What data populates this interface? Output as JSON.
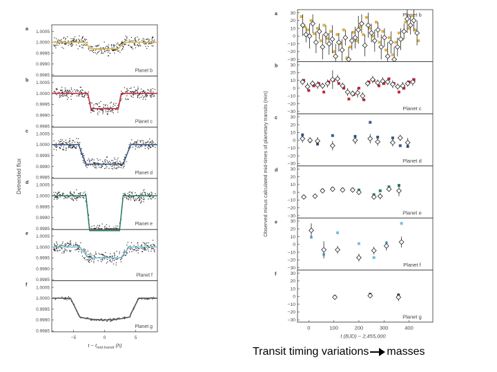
{
  "caption": {
    "text_before": "Transit timing variations",
    "text_after": "masses"
  },
  "colors": {
    "b": "#d9b24a",
    "c": "#c0283c",
    "d": "#3c5a88",
    "e": "#2f7f6f",
    "f": "#78bfd8",
    "g": "#555555"
  },
  "chart_data": [
    {
      "type": "scatter",
      "description_key": "lightcurves",
      "ylabel": "Detrended flux",
      "xlabel_prefix": "t − t",
      "xlabel_sub": "mid transit",
      "xlabel_unit": " (h)",
      "x_ticks": [
        "−5",
        "0",
        "5"
      ],
      "x_tick_values": [
        -5,
        0,
        5
      ],
      "xlim": [
        -8.5,
        8.5
      ],
      "panels": [
        {
          "letter": "a",
          "planet": "Planet b",
          "color_key": "b",
          "ticks": [
            "1.0005",
            "1.0000",
            "0.9995",
            "0.9990",
            "0.9985"
          ],
          "tick_values": [
            1.0005,
            1.0,
            0.9995,
            0.999,
            0.9985
          ],
          "ylim": [
            0.99845,
            1.0008
          ],
          "depth": 0.0003,
          "half_width": 3.2,
          "ingress": 1.0,
          "noise": 0.00022
        },
        {
          "letter": "b",
          "planet": "Planet c",
          "color_key": "c",
          "ticks": [
            "1.0005",
            "1.0000",
            "0.9995",
            "0.9990",
            "0.9985"
          ],
          "tick_values": [
            1.0005,
            1.0,
            0.9995,
            0.999,
            0.9985
          ],
          "ylim": [
            0.99845,
            1.0008
          ],
          "depth": 0.0007,
          "half_width": 2.7,
          "ingress": 0.5,
          "noise": 0.00022
        },
        {
          "letter": "c",
          "planet": "Planet d",
          "color_key": "d",
          "ticks": [
            "1.0005",
            "1.0000",
            "0.9995",
            "0.9990",
            "0.9985"
          ],
          "tick_values": [
            1.0005,
            1.0,
            0.9995,
            0.999,
            0.9985
          ],
          "ylim": [
            0.99845,
            1.0008
          ],
          "depth": 0.0009,
          "half_width": 4.2,
          "ingress": 1.2,
          "noise": 0.00022
        },
        {
          "letter": "d",
          "planet": "Planet e",
          "color_key": "e",
          "ticks": [
            "1.0005",
            "1.0000",
            "0.9995",
            "0.9990",
            "0.9985"
          ],
          "tick_values": [
            1.0005,
            1.0,
            0.9995,
            0.999,
            0.9985
          ],
          "ylim": [
            0.99845,
            1.0008
          ],
          "depth": 0.0016,
          "half_width": 3.0,
          "ingress": 0.6,
          "noise": 0.00022
        },
        {
          "letter": "e",
          "planet": "Planet f",
          "color_key": "f",
          "ticks": [
            "1.0005",
            "1.0000",
            "0.9995",
            "0.9990",
            "0.9985"
          ],
          "tick_values": [
            1.0005,
            1.0,
            0.9995,
            0.999,
            0.9985
          ],
          "ylim": [
            0.99845,
            1.0008
          ],
          "depth": 0.0005,
          "half_width": 4.0,
          "ingress": 1.4,
          "noise": 0.00022
        },
        {
          "letter": "f",
          "planet": "Planet g",
          "color_key": "g",
          "ticks": [
            "1.0005",
            "1.0000",
            "0.9995",
            "0.9990",
            "0.9985"
          ],
          "tick_values": [
            1.0005,
            1.0,
            0.9995,
            0.999,
            0.9985
          ],
          "ylim": [
            0.99845,
            1.0008
          ],
          "depth": 0.001,
          "half_width": 5.5,
          "ingress": 1.4,
          "noise": 6e-05
        }
      ]
    },
    {
      "type": "scatter",
      "description_key": "ttv",
      "ylabel": "Observed minus calculated mid-times of planetary transits (min)",
      "xlabel": "t (BJD) − 2,455,000",
      "x_ticks": [
        "0",
        "100",
        "200",
        "300",
        "400"
      ],
      "x_tick_values": [
        0,
        100,
        200,
        300,
        400
      ],
      "xlim": [
        -45,
        495
      ],
      "y_ticks": [
        "30",
        "20",
        "10",
        "0",
        "−10",
        "−20",
        "−30"
      ],
      "y_tick_values": [
        30,
        20,
        10,
        0,
        -10,
        -20,
        -30
      ],
      "ylim": [
        -33,
        34
      ],
      "panels": [
        {
          "letter": "a",
          "planet": "Planet b",
          "color_key": "b",
          "model_t": [
            -30,
            -17,
            -4,
            9,
            22,
            35,
            48,
            61,
            74,
            87,
            100,
            113,
            126,
            139,
            152,
            165,
            178,
            191,
            204,
            217,
            230,
            243,
            256,
            269,
            282,
            295,
            308,
            321,
            334,
            347,
            360,
            373,
            386,
            399,
            412,
            425,
            438
          ],
          "model_v": [
            25,
            12,
            8,
            20,
            3,
            10,
            -6,
            14,
            -3,
            6,
            -20,
            2,
            -10,
            8,
            -28,
            -14,
            5,
            -6,
            12,
            2,
            24,
            10,
            0,
            18,
            -8,
            6,
            -18,
            -2,
            -24,
            -8,
            4,
            -4,
            18,
            10,
            26,
            8,
            -6
          ],
          "obs_t": [
            -24,
            -11,
            3,
            16,
            29,
            42,
            55,
            68,
            81,
            94,
            107,
            120,
            133,
            146,
            159,
            172,
            185,
            198,
            211,
            224,
            237,
            250,
            263,
            276,
            289,
            302,
            315,
            328,
            341,
            354,
            367,
            380,
            393,
            406,
            419,
            432
          ],
          "obs_v": [
            14,
            2,
            0,
            16,
            -8,
            6,
            -14,
            2,
            -10,
            -4,
            -26,
            -8,
            -18,
            -2,
            -30,
            -6,
            -2,
            8,
            16,
            -12,
            14,
            4,
            -6,
            8,
            -14,
            -2,
            -26,
            -8,
            -30,
            -14,
            -4,
            6,
            22,
            14,
            20,
            4
          ],
          "err": [
            14,
            10,
            16,
            12,
            14,
            10,
            16,
            12,
            14,
            18,
            16,
            12,
            14,
            10,
            16,
            12,
            14,
            18,
            12,
            14,
            16,
            12,
            14,
            10,
            16,
            12,
            18,
            14,
            16,
            12,
            14,
            10,
            18,
            12,
            14,
            16
          ]
        },
        {
          "letter": "b",
          "planet": "Planet c",
          "color_key": "c",
          "model_t": [
            -20,
            0,
            20,
            40,
            60,
            80,
            100,
            120,
            140,
            160,
            180,
            200,
            220,
            240,
            260,
            280,
            300,
            320,
            340,
            360,
            380,
            400,
            420
          ],
          "model_v": [
            10,
            -3,
            3,
            6,
            -5,
            8,
            10,
            6,
            0,
            -14,
            -8,
            0,
            -15,
            8,
            10,
            3,
            6,
            12,
            6,
            -5,
            0,
            8,
            11
          ],
          "obs_t": [
            -25,
            -5,
            15,
            35,
            55,
            75,
            95,
            115,
            135,
            155,
            175,
            195,
            215,
            235,
            255,
            275,
            295,
            315,
            335,
            355,
            375,
            395,
            415
          ],
          "obs_v": [
            8,
            2,
            6,
            4,
            3,
            6,
            11,
            12,
            3,
            -5,
            -7,
            -6,
            -10,
            6,
            11,
            7,
            9,
            8,
            5,
            2,
            3,
            6,
            8
          ],
          "err": [
            4,
            5,
            4,
            5,
            4,
            5,
            12,
            5,
            4,
            5,
            4,
            6,
            5,
            4,
            5,
            4,
            5,
            4,
            5,
            4,
            5,
            4,
            5
          ]
        },
        {
          "letter": "c",
          "planet": "Planet d",
          "color_key": "d",
          "model_t": [
            -25,
            5,
            35,
            95,
            185,
            245,
            275,
            335,
            365,
            395
          ],
          "model_v": [
            7,
            -1,
            -5,
            6,
            5,
            23,
            4,
            3,
            -7,
            -8
          ],
          "obs_t": [
            -25,
            5,
            35,
            95,
            185,
            245,
            275,
            335,
            365,
            395
          ],
          "obs_v": [
            2,
            0,
            -1,
            -7,
            0,
            2,
            -2,
            -3,
            3,
            -3
          ],
          "err": [
            5,
            4,
            5,
            6,
            5,
            6,
            5,
            5,
            4,
            6
          ]
        },
        {
          "letter": "d",
          "planet": "Planet e",
          "color_key": "e",
          "model_t": [
            -20,
            25,
            55,
            95,
            135,
            175,
            200,
            260,
            285,
            320,
            360
          ],
          "model_v": [
            -6,
            -5,
            3,
            5,
            4,
            4,
            3,
            -3,
            2,
            7,
            9
          ],
          "obs_t": [
            -20,
            25,
            55,
            95,
            135,
            175,
            200,
            260,
            285,
            320,
            360
          ],
          "obs_v": [
            -6,
            -5,
            2,
            4,
            3,
            3,
            0,
            -6,
            -5,
            4,
            2
          ],
          "err": [
            3,
            3,
            3,
            3,
            3,
            3,
            3,
            3,
            4,
            3,
            7
          ]
        },
        {
          "letter": "e",
          "planet": "Planet f",
          "color_key": "f",
          "model_t": [
            10,
            60,
            115,
            200,
            260,
            310,
            370
          ],
          "model_v": [
            9,
            -13,
            15,
            1,
            -17,
            2,
            27
          ],
          "obs_t": [
            10,
            60,
            115,
            200,
            260,
            310,
            370
          ],
          "obs_v": [
            18,
            -7,
            -7,
            -17,
            -8,
            -2,
            3
          ],
          "err": [
            9,
            11,
            5,
            5,
            5,
            6,
            7
          ]
        },
        {
          "letter": "f",
          "planet": "Planet g",
          "color_key": "g",
          "model_t": [
            104,
            245,
            358
          ],
          "model_v": [
            0,
            3,
            2
          ],
          "obs_t": [
            104,
            245,
            358
          ],
          "obs_v": [
            -1,
            1,
            -1
          ],
          "err": [
            2,
            3,
            5
          ]
        }
      ]
    }
  ]
}
